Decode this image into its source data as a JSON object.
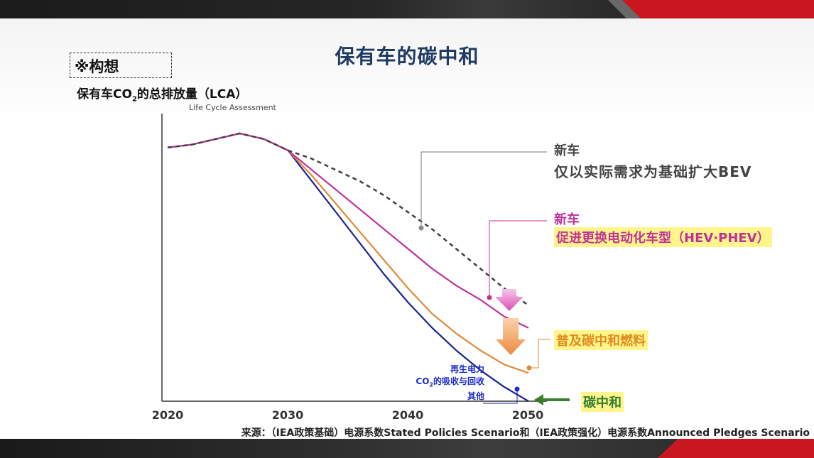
{
  "page": {
    "title": "保有车的碳中和",
    "concept_label": "※构想",
    "source_note": "来源：（IEA政策基础）电源系数Stated Policies Scenario和（IEA政策强化）电源系数Announced Pledges Scenario"
  },
  "colors": {
    "gray_dashed": "#404040",
    "magenta": "#c0319c",
    "orange": "#e08a3a",
    "navy": "#1a2490",
    "green_arrow": "#3a7d2a",
    "title_blue": "#1f3b63",
    "highlight": "#fff58a"
  },
  "chart_data": {
    "type": "line",
    "ylabel_main": "保有车CO",
    "ylabel_sub": "2",
    "ylabel_tail": "的总排放量（LCA）",
    "ylabel_note": "Life Cycle Assessment",
    "xlim": [
      2020,
      2050
    ],
    "ylim": [
      0,
      100
    ],
    "xticks": [
      "2020",
      "2030",
      "2040",
      "2050"
    ],
    "series": [
      {
        "name_line1": "新车",
        "name_line2": "仅以实际需求为基础扩大BEV",
        "style": "dashed",
        "x": [
          2020,
          2022,
          2024,
          2026,
          2028,
          2030,
          2032,
          2034,
          2036,
          2038,
          2040,
          2042,
          2044,
          2046,
          2048,
          2050
        ],
        "y": [
          90,
          91,
          93,
          95,
          93,
          89,
          86,
          82,
          78,
          73,
          67,
          61,
          54,
          47,
          40,
          34
        ]
      },
      {
        "name_line1": "新车",
        "name_line2": "促进更换电动化车型（HEV·PHEV）",
        "style": "solid",
        "x": [
          2020,
          2022,
          2024,
          2026,
          2028,
          2030,
          2032,
          2034,
          2036,
          2038,
          2040,
          2042,
          2044,
          2046,
          2048,
          2050
        ],
        "y": [
          90,
          91,
          93,
          95,
          93,
          89,
          82,
          75,
          68,
          61,
          54,
          47,
          41,
          36,
          30,
          26
        ]
      },
      {
        "name_line1": "普及碳中和燃料",
        "style": "solid",
        "x": [
          2020,
          2022,
          2024,
          2026,
          2028,
          2030,
          2032,
          2034,
          2036,
          2038,
          2040,
          2042,
          2044,
          2046,
          2048,
          2050
        ],
        "y": [
          90,
          91,
          93,
          95,
          93,
          89,
          80,
          70,
          60,
          50,
          40,
          31,
          24,
          18,
          13,
          10
        ]
      },
      {
        "name_line1": "碳中和",
        "style": "solid",
        "x": [
          2020,
          2022,
          2024,
          2026,
          2028,
          2030,
          2032,
          2034,
          2036,
          2038,
          2040,
          2042,
          2044,
          2046,
          2048,
          2050
        ],
        "y": [
          90,
          91,
          93,
          95,
          93,
          89,
          78,
          67,
          56,
          45,
          35,
          26,
          18,
          11,
          5,
          0
        ]
      }
    ],
    "annotation_blue": {
      "line1": "再生电力",
      "line2_pre": "CO",
      "line2_sub": "2",
      "line2_post": "的吸收与回收",
      "line3": "其他"
    }
  }
}
